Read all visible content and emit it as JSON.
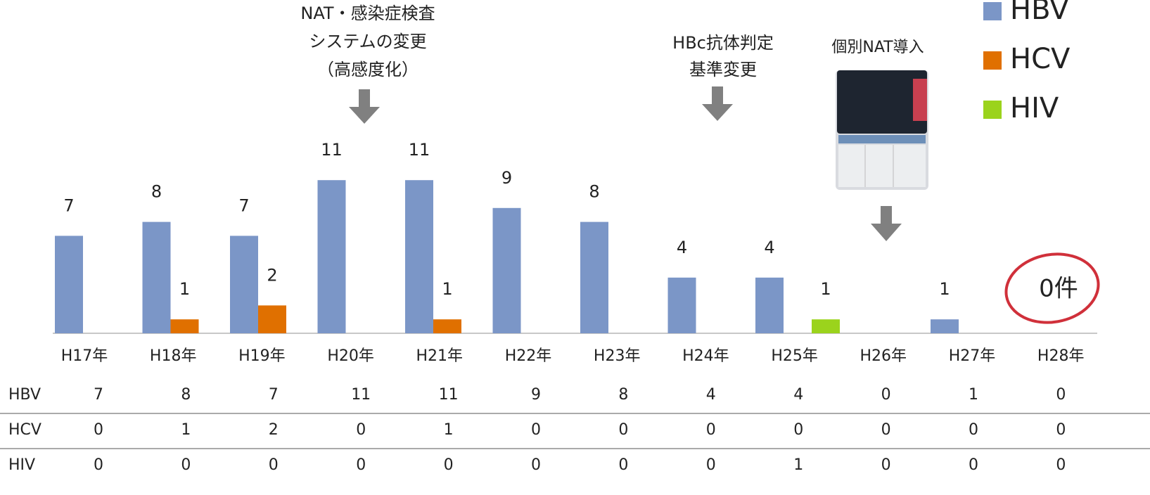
{
  "chart_data": {
    "type": "bar",
    "categories": [
      "H17年",
      "H18年",
      "H19年",
      "H20年",
      "H21年",
      "H22年",
      "H23年",
      "H24年",
      "H25年",
      "H26年",
      "H27年",
      "H28年"
    ],
    "series": [
      {
        "name": "HBV",
        "color": "#7b96c7",
        "values": [
          7,
          8,
          7,
          11,
          11,
          9,
          8,
          4,
          4,
          0,
          1,
          0
        ]
      },
      {
        "name": "HCV",
        "color": "#e07000",
        "values": [
          0,
          1,
          2,
          0,
          1,
          0,
          0,
          0,
          0,
          0,
          0,
          0
        ]
      },
      {
        "name": "HIV",
        "color": "#9bd31c",
        "values": [
          0,
          0,
          0,
          0,
          0,
          0,
          0,
          0,
          1,
          0,
          0,
          0
        ]
      }
    ],
    "annotations": [
      [
        "NAT・感染症検査",
        "システムの変更",
        "（高感度化）"
      ],
      [
        "HBc抗体判定",
        "基準変更"
      ],
      [
        "個別NAT導入"
      ],
      [
        "0件"
      ]
    ],
    "legend": "top-right"
  }
}
